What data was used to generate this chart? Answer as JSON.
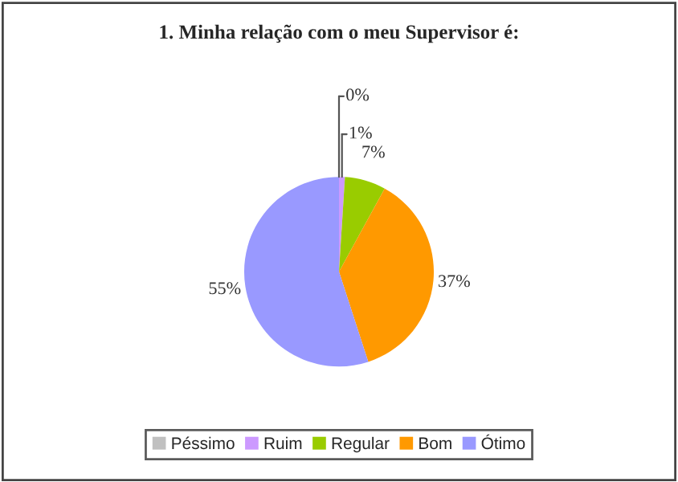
{
  "chart_data": {
    "type": "pie",
    "title": "1. Minha relação com o meu Supervisor é:",
    "categories": [
      "Péssimo",
      "Ruim",
      "Regular",
      "Bom",
      "Ótimo"
    ],
    "values": [
      0,
      1,
      7,
      37,
      55
    ],
    "colors": [
      "#c0c0c0",
      "#cc99ff",
      "#99cc00",
      "#ff9900",
      "#9999ff"
    ],
    "value_labels": [
      "0%",
      "1%",
      "7%",
      "37%",
      "55%"
    ],
    "legend": "bottom"
  }
}
